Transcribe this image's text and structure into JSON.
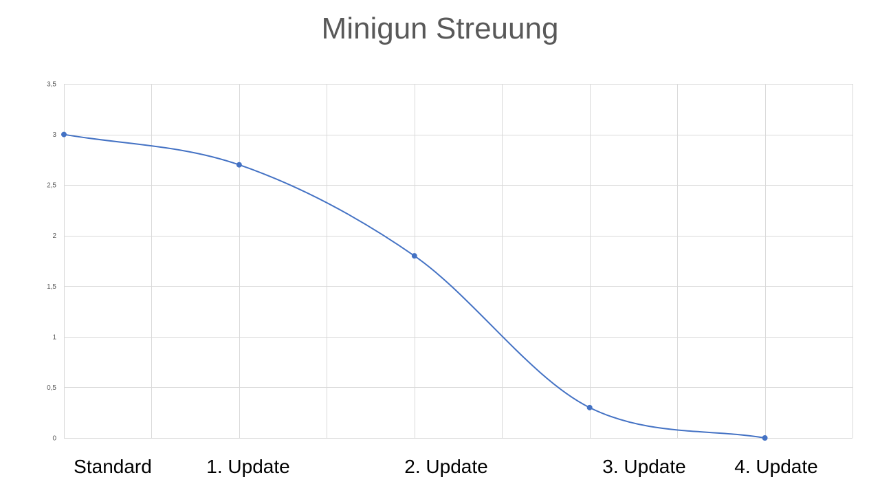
{
  "chart_data": {
    "type": "line",
    "title": "Minigun Streuung",
    "xlabel": "",
    "ylabel": "",
    "ylim": [
      0,
      3.5
    ],
    "y_ticks": [
      {
        "value": 0,
        "label": "0"
      },
      {
        "value": 0.5,
        "label": "0,5"
      },
      {
        "value": 1,
        "label": "1"
      },
      {
        "value": 1.5,
        "label": "1,5"
      },
      {
        "value": 2,
        "label": "2"
      },
      {
        "value": 2.5,
        "label": "2,5"
      },
      {
        "value": 3,
        "label": "3"
      },
      {
        "value": 3.5,
        "label": "3,5"
      }
    ],
    "category_labels": [
      "Standard",
      "1. Update",
      "2. Update",
      "3. Update",
      "4. Update"
    ],
    "x_positions": [
      0,
      2,
      4,
      6,
      8
    ],
    "xlim": [
      0,
      9
    ],
    "grid": true,
    "smooth": true,
    "series": [
      {
        "values": [
          3,
          2.7,
          1.8,
          0.3,
          0
        ]
      }
    ],
    "colors": {
      "line": "#4472c4",
      "marker": "#4472c4",
      "grid": "#d9d9d9"
    }
  }
}
